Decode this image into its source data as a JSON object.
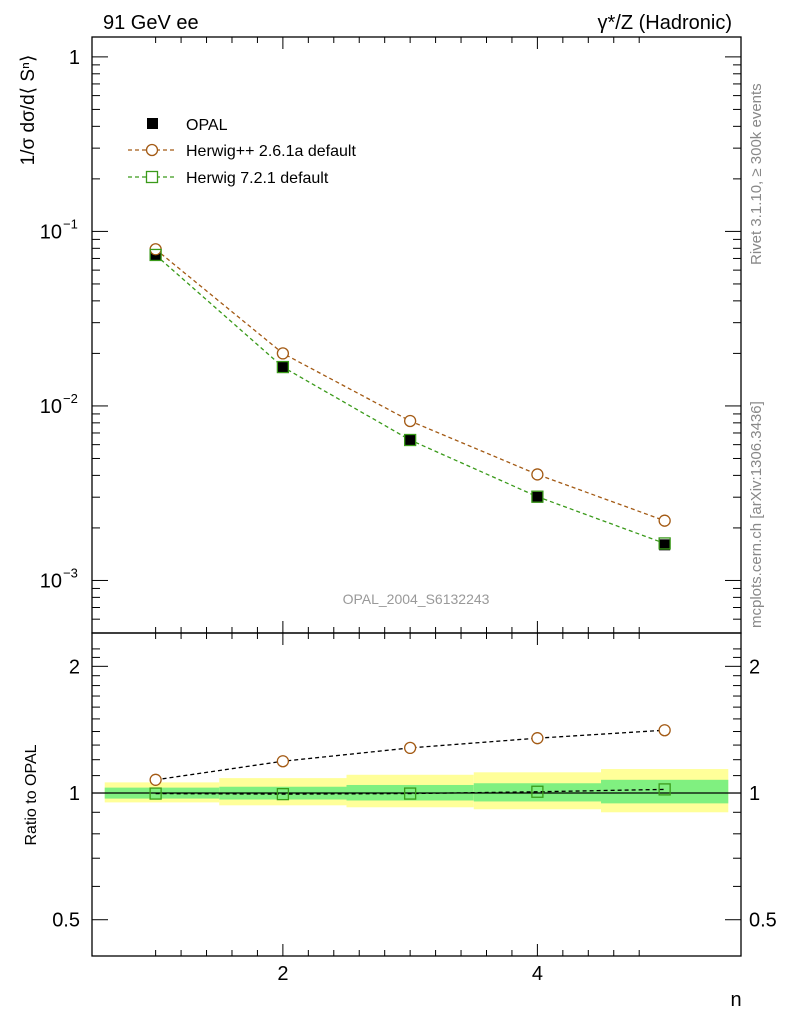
{
  "header": {
    "left_title": "91 GeV ee",
    "right_title": "γ*/Z (Hadronic)"
  },
  "side_labels": {
    "rivet": "Rivet 3.1.10, ≥ 300k events",
    "mcplots": "mcplots.cern.ch [arXiv:1306.3436]"
  },
  "analysis_id": "OPAL_2004_S6132243",
  "colors": {
    "data": "#000000",
    "herwigpp": "#a35a14",
    "herwig7": "#3a9a1a",
    "band_inner": "#80f080",
    "band_outer": "#ffff99"
  },
  "legend": [
    {
      "label": "OPAL",
      "marker": "filled-square"
    },
    {
      "label": "Herwig++ 2.6.1a default",
      "marker": "open-circle"
    },
    {
      "label": "Herwig 7.2.1 default",
      "marker": "open-square"
    }
  ],
  "chart_data": [
    {
      "type": "scatter",
      "scale": "log",
      "ylabel": "1/σ dσ/d⟨ Sⁿ⟩",
      "ylim": [
        0.0005,
        1.3
      ],
      "xlim": [
        0.5,
        5.6
      ],
      "yticks": [
        {
          "value": 0.001,
          "label": "10",
          "exp": "−3"
        },
        {
          "value": 0.01,
          "label": "10",
          "exp": "−2"
        },
        {
          "value": 0.1,
          "label": "10",
          "exp": "−1"
        },
        {
          "value": 1,
          "label": "1",
          "exp": ""
        }
      ],
      "x": [
        1,
        2,
        3,
        4,
        5
      ],
      "series": [
        {
          "name": "OPAL",
          "values": [
            0.0735,
            0.0168,
            0.0064,
            0.003,
            0.0016
          ]
        },
        {
          "name": "Herwig++ 2.6.1a default",
          "values": [
            0.079,
            0.02,
            0.0082,
            0.00405,
            0.0022
          ]
        },
        {
          "name": "Herwig 7.2.1 default",
          "values": [
            0.0733,
            0.0167,
            0.00638,
            0.00302,
            0.00163
          ]
        }
      ]
    },
    {
      "type": "scatter",
      "scale": "log",
      "ylabel": "Ratio to OPAL",
      "xlabel": "n",
      "ylim": [
        0.41,
        2.4
      ],
      "xlim": [
        0.5,
        5.6
      ],
      "yticks": [
        {
          "value": 0.5,
          "label": "0.5"
        },
        {
          "value": 1,
          "label": "1"
        },
        {
          "value": 2,
          "label": "2"
        }
      ],
      "xticks": [
        {
          "value": 2,
          "label": "2"
        },
        {
          "value": 4,
          "label": "4"
        }
      ],
      "x": [
        1,
        2,
        3,
        4,
        5
      ],
      "bins": [
        [
          0.6,
          1.5
        ],
        [
          1.5,
          2.5
        ],
        [
          2.5,
          3.5
        ],
        [
          3.5,
          4.5
        ],
        [
          4.5,
          5.5
        ]
      ],
      "band_inner": [
        [
          0.97,
          1.03
        ],
        [
          0.965,
          1.035
        ],
        [
          0.96,
          1.045
        ],
        [
          0.955,
          1.055
        ],
        [
          0.945,
          1.075
        ]
      ],
      "band_outer": [
        [
          0.95,
          1.06
        ],
        [
          0.935,
          1.085
        ],
        [
          0.925,
          1.105
        ],
        [
          0.915,
          1.12
        ],
        [
          0.9,
          1.14
        ]
      ],
      "series": [
        {
          "name": "Herwig++ 2.6.1a default",
          "values": [
            1.075,
            1.19,
            1.28,
            1.35,
            1.41
          ]
        },
        {
          "name": "Herwig 7.2.1 default",
          "values": [
            0.997,
            0.994,
            0.997,
            1.007,
            1.02
          ]
        }
      ]
    }
  ]
}
